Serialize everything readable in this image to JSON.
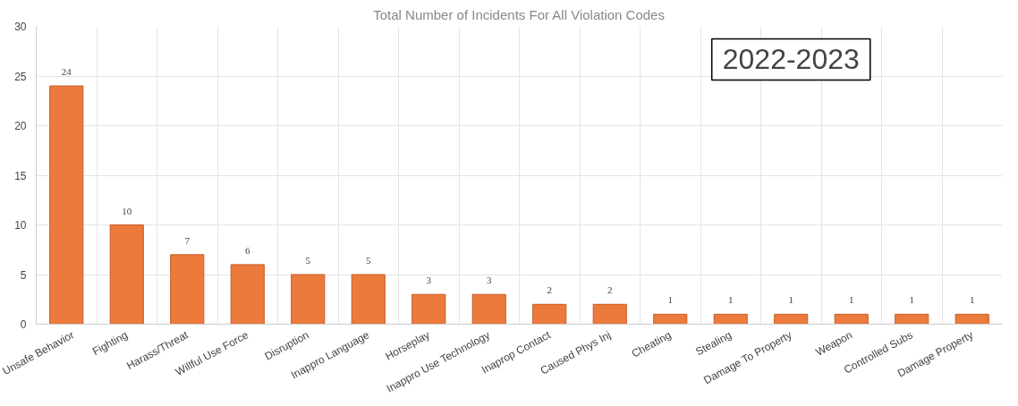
{
  "chart_data": {
    "type": "bar",
    "title": "Total Number of Incidents For All Violation Codes",
    "annotations": [
      "2022-2023"
    ],
    "categories": [
      "Unsafe Behavior",
      "Fighting",
      "Harass/Threat",
      "Willful Use Force",
      "Disruption",
      "Inappro Language",
      "Horseplay",
      "Inappro Use Technology",
      "Inaprop Contact",
      "Caused Phys Inj",
      "Cheating",
      "Stealing",
      "Damage To Property",
      "Weapon",
      "Controlled Subs",
      "Damage Property"
    ],
    "values": [
      24,
      10,
      7,
      6,
      5,
      5,
      3,
      3,
      2,
      2,
      1,
      1,
      1,
      1,
      1,
      1
    ],
    "color": "#ec7a3c",
    "ylim": [
      0,
      30
    ],
    "yticks": [
      0,
      5,
      10,
      15,
      20,
      25,
      30
    ],
    "grid": true,
    "data_labels": true
  }
}
